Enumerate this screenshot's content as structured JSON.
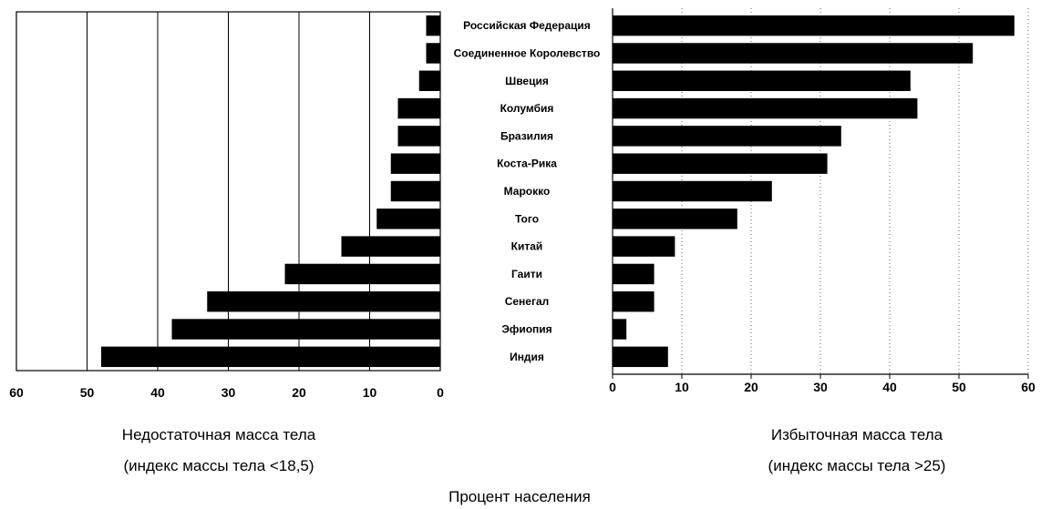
{
  "chart_data": [
    {
      "type": "bar",
      "orientation": "horizontal",
      "direction": "reversed",
      "caption": [
        "Недостаточная масса тела",
        "(индекс массы тела <18,5)"
      ],
      "categories": [
        "Российская Федерация",
        "Соединенное Королевство",
        "Швеция",
        "Колумбия",
        "Бразилия",
        "Коста-Рика",
        "Марокко",
        "Того",
        "Китай",
        "Гаити",
        "Сенегал",
        "Эфиопия",
        "Индия"
      ],
      "values": [
        2,
        2,
        3,
        6,
        6,
        7,
        7,
        9,
        14,
        22,
        33,
        38,
        48
      ],
      "xlim": [
        0,
        60
      ],
      "xticks": [
        "60",
        "50",
        "40",
        "30",
        "20",
        "10",
        "0"
      ],
      "grid": "vertical",
      "bar_color": "#000000"
    },
    {
      "type": "bar",
      "orientation": "horizontal",
      "caption": [
        "Избыточная масса тела",
        "(индекс массы тела >25)"
      ],
      "categories": [
        "Российская Федерация",
        "Соединенное Королевство",
        "Швеция",
        "Колумбия",
        "Бразилия",
        "Коста-Рика",
        "Марокко",
        "Того",
        "Китай",
        "Гаити",
        "Сенегал",
        "Эфиопия",
        "Индия"
      ],
      "values": [
        58,
        52,
        43,
        44,
        33,
        31,
        23,
        18,
        9,
        6,
        6,
        2,
        8
      ],
      "xlim": [
        0,
        60
      ],
      "xticks": [
        "0",
        "10",
        "20",
        "30",
        "40",
        "50",
        "60"
      ],
      "grid": "vertical-dotted",
      "bar_color": "#000000"
    }
  ],
  "shared_xlabel": "Процент населения"
}
